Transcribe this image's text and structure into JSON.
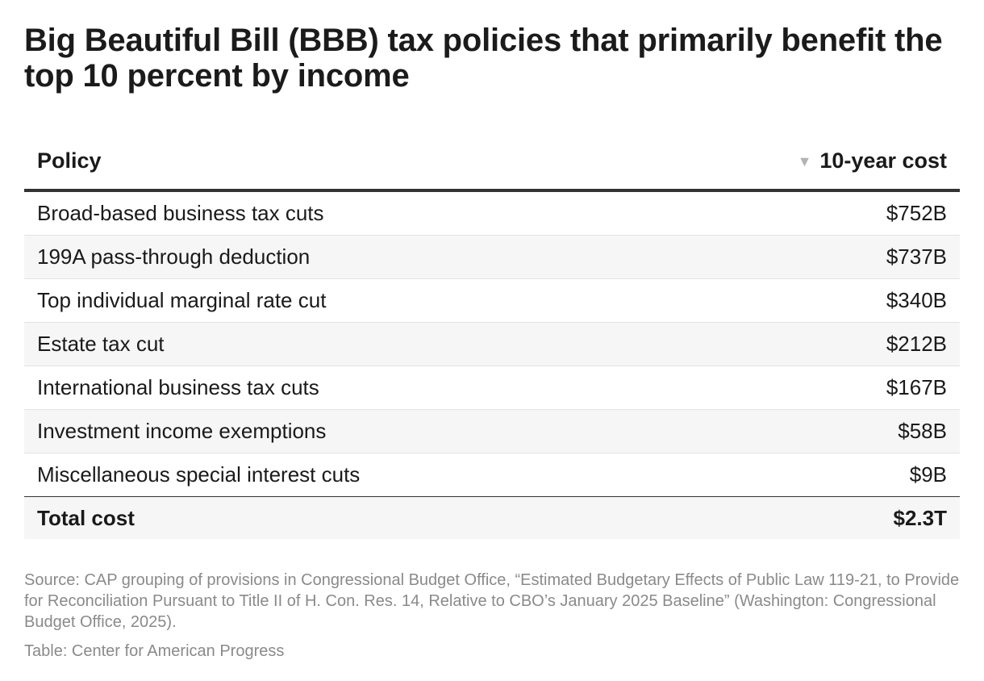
{
  "title": "Big Beautiful Bill (BBB) tax policies that primarily benefit the top 10 percent by income",
  "chart_data": {
    "type": "table",
    "columns": [
      "Policy",
      "10-year cost"
    ],
    "sort": {
      "column": "10-year cost",
      "direction": "descending",
      "indicator": "▼"
    },
    "rows": [
      {
        "policy": "Broad-based business tax cuts",
        "cost": "$752B",
        "value_billions": 752
      },
      {
        "policy": "199A pass-through deduction",
        "cost": "$737B",
        "value_billions": 737
      },
      {
        "policy": "Top individual marginal rate cut",
        "cost": "$340B",
        "value_billions": 340
      },
      {
        "policy": "Estate tax cut",
        "cost": "$212B",
        "value_billions": 212
      },
      {
        "policy": "International business tax cuts",
        "cost": "$167B",
        "value_billions": 167
      },
      {
        "policy": "Investment income exemptions",
        "cost": "$58B",
        "value_billions": 58
      },
      {
        "policy": "Miscellaneous special interest cuts",
        "cost": "$9B",
        "value_billions": 9
      }
    ],
    "total": {
      "label": "Total cost",
      "cost": "$2.3T"
    }
  },
  "source": "Source: CAP grouping of provisions in Congressional Budget Office, “Estimated Budgetary Effects of Public Law 119-21, to Provide for Reconciliation Pursuant to Title II of H. Con. Res. 14, Relative to CBO’s January 2025 Baseline” (Washington: Congressional Budget Office, 2025).",
  "credit": "Table: Center for American Progress"
}
